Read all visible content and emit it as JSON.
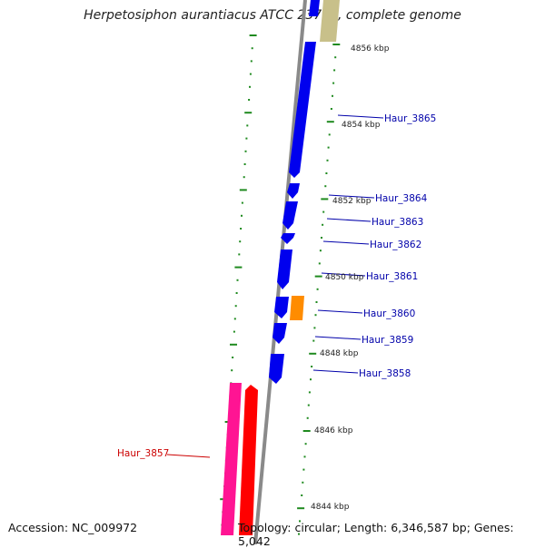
{
  "title": "Herpetosiphon aurantiacus ATCC 23779, complete genome",
  "footer": {
    "accession": "Accession: NC_009972",
    "topology": "Topology: circular; Length: 6,346,587 bp; Genes: 5,042"
  },
  "colors": {
    "backbone": "#8a8a8a",
    "tick": "#1f8a1f",
    "gene_forward": "#0000ee",
    "gene_label": "#0000aa",
    "gene_highlight": "#ff8c00",
    "gene_other": "#c8c08a",
    "rna_red": "#ff0000",
    "rna_pink": "#ff1493",
    "label_red": "#cc0000"
  },
  "kbp_labels": [
    "4856 kbp",
    "4854 kbp",
    "4852 kbp",
    "4850 kbp",
    "4848 kbp",
    "4846 kbp",
    "4844 kbp"
  ],
  "gene_labels": [
    "Haur_3865",
    "Haur_3864",
    "Haur_3863",
    "Haur_3862",
    "Haur_3861",
    "Haur_3860",
    "Haur_3859",
    "Haur_3858",
    "Haur_3857"
  ]
}
